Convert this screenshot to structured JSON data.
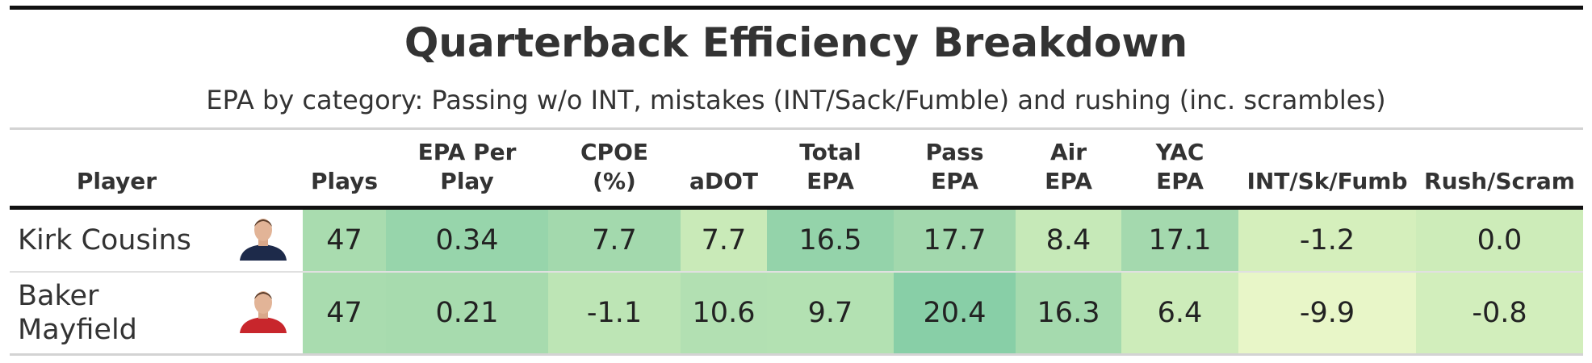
{
  "title": "Quarterback Efficiency Breakdown",
  "subtitle": "EPA by category: Passing w/o INT, mistakes (INT/Sack/Fumble) and rushing (inc. scrambles)",
  "table": {
    "player_header": "Player",
    "columns": [
      [
        "Plays"
      ],
      [
        "EPA Per",
        "Play"
      ],
      [
        "CPOE",
        "(%)"
      ],
      [
        "aDOT"
      ],
      [
        "Total",
        "EPA"
      ],
      [
        "Pass",
        "EPA"
      ],
      [
        "Air",
        "EPA"
      ],
      [
        "YAC",
        "EPA"
      ],
      [
        "INT/Sk/Fumb"
      ],
      [
        "Rush/Scram"
      ]
    ],
    "rows": [
      {
        "player": "Kirk Cousins",
        "jersey": "#1d2a4a",
        "cells": [
          "47",
          "0.34",
          "7.7",
          "7.7",
          "16.5",
          "17.7",
          "8.4",
          "17.1",
          "-1.2",
          "0.0"
        ],
        "colors": [
          "#a9dcaf",
          "#97d5ab",
          "#a3d9ad",
          "#c9eab8",
          "#94d3aa",
          "#a2d8ad",
          "#c6e9b8",
          "#a4d9ae",
          "#d5efbc",
          "#cdecb9"
        ]
      },
      {
        "player": "Baker Mayfield",
        "jersey": "#c8262c",
        "cells": [
          "47",
          "0.21",
          "-1.1",
          "10.6",
          "9.7",
          "20.4",
          "16.3",
          "6.4",
          "-9.9",
          "-0.8"
        ],
        "colors": [
          "#a9dcaf",
          "#a7dbae",
          "#bde5b5",
          "#b2e0b2",
          "#b3e1b2",
          "#88cfa7",
          "#a5daae",
          "#cdecba",
          "#e8f6c8",
          "#d2eebc"
        ]
      }
    ]
  }
}
